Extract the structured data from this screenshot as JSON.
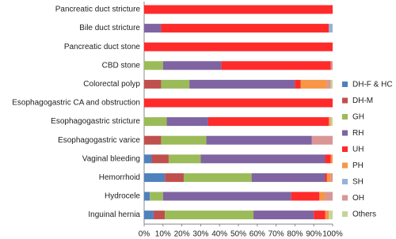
{
  "chart_data": {
    "type": "stacked-barh",
    "categories": [
      "Pancreatic duct stricture",
      "Bile duct stricture",
      "Pancreatic duct stone",
      "CBD stone",
      "Colorectal polyp",
      "Esophagogastric CA and obstruction",
      "Esophagogastric stricture",
      "Esophagogastric varice",
      "Vaginal bleeding",
      "Hemorrhoid",
      "Hydrocele",
      "Inguinal hernia"
    ],
    "series": [
      {
        "name": "DH-F & HC",
        "color": "#4f81bd",
        "values": [
          0,
          0,
          0,
          0,
          0,
          0,
          0,
          0,
          4,
          11,
          3,
          5
        ]
      },
      {
        "name": "DH-M",
        "color": "#c0504d",
        "values": [
          0,
          0,
          0,
          0,
          9,
          0,
          0,
          9,
          9,
          10,
          0,
          6
        ]
      },
      {
        "name": "GH",
        "color": "#9bbb59",
        "values": [
          0,
          0,
          0,
          10,
          15,
          0,
          12,
          24,
          17,
          36,
          7,
          47
        ]
      },
      {
        "name": "RH",
        "color": "#8064a2",
        "values": [
          0,
          9,
          0,
          31,
          56,
          0,
          22,
          56,
          66,
          39,
          68,
          32
        ]
      },
      {
        "name": "UH",
        "color": "#ff2a2a",
        "values": [
          100,
          89,
          100,
          58,
          3,
          100,
          64,
          0,
          3,
          1,
          15,
          6
        ]
      },
      {
        "name": "PH",
        "color": "#f79646",
        "values": [
          0,
          0,
          0,
          0,
          14,
          0,
          1,
          0,
          1,
          2,
          3,
          2
        ]
      },
      {
        "name": "SH",
        "color": "#95b3d7",
        "values": [
          0,
          2,
          0,
          0,
          0,
          0,
          0,
          0,
          0,
          0,
          0,
          0
        ]
      },
      {
        "name": "OH",
        "color": "#d99694",
        "values": [
          0,
          0,
          0,
          1,
          2,
          0,
          0,
          11,
          0,
          1,
          4,
          0
        ]
      },
      {
        "name": "Others",
        "color": "#c3d69b",
        "values": [
          0,
          0,
          0,
          0,
          1,
          0,
          1,
          0,
          0,
          0,
          0,
          2
        ]
      }
    ],
    "xlim": [
      0,
      100
    ],
    "xticks": [
      {
        "value": 0,
        "label": "0%"
      },
      {
        "value": 10,
        "label": "10%"
      },
      {
        "value": 20,
        "label": "20%"
      },
      {
        "value": 30,
        "label": "30%"
      },
      {
        "value": 40,
        "label": "40%"
      },
      {
        "value": 50,
        "label": "50%"
      },
      {
        "value": 60,
        "label": "60%"
      },
      {
        "value": 70,
        "label": "70%"
      },
      {
        "value": 80,
        "label": "80%"
      },
      {
        "value": 90,
        "label": "90%"
      },
      {
        "value": 100,
        "label": "100%"
      }
    ],
    "legend": "right"
  }
}
